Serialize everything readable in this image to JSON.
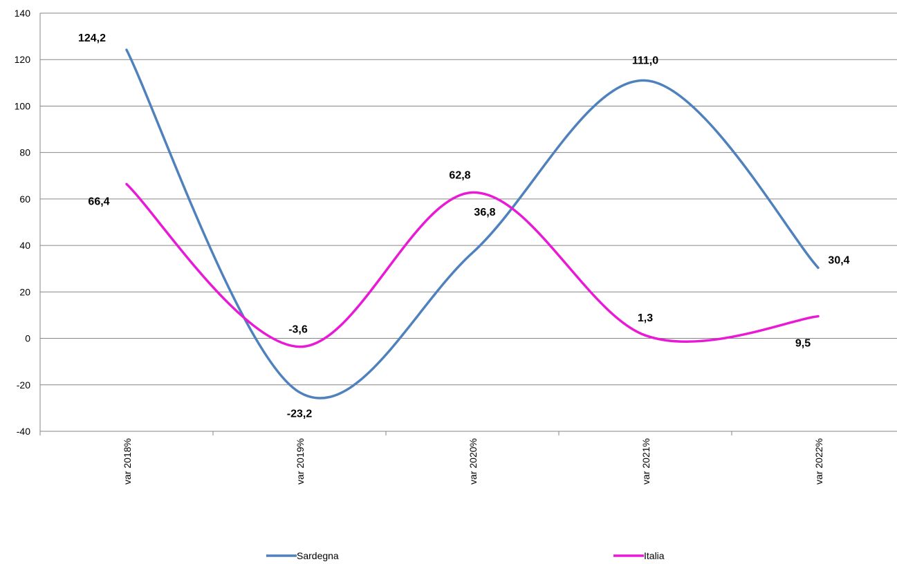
{
  "chart_data": {
    "type": "line",
    "categories": [
      "var 2018%",
      "var 2019%",
      "var 2020%",
      "var 2021%",
      "var 2022%"
    ],
    "series": [
      {
        "name": "Sardegna",
        "color": "#4F81BD",
        "values": [
          124.2,
          -23.2,
          36.8,
          111.0,
          30.4
        ],
        "labels": [
          "124,2",
          "-23,2",
          "36,8",
          "111,0",
          "30,4"
        ]
      },
      {
        "name": "Italia",
        "color": "#E81AD6",
        "values": [
          66.4,
          -3.6,
          62.8,
          1.3,
          9.5
        ],
        "labels": [
          "66,4",
          "-3,6",
          "62,8",
          "1,3",
          "9,5"
        ]
      }
    ],
    "ylim": [
      -40,
      140
    ],
    "yticks": [
      -40,
      -20,
      0,
      20,
      40,
      60,
      80,
      100,
      120,
      140
    ],
    "grid": true,
    "smooth": true,
    "legend_position": "bottom",
    "xlabel": "",
    "ylabel": "",
    "title": ""
  }
}
